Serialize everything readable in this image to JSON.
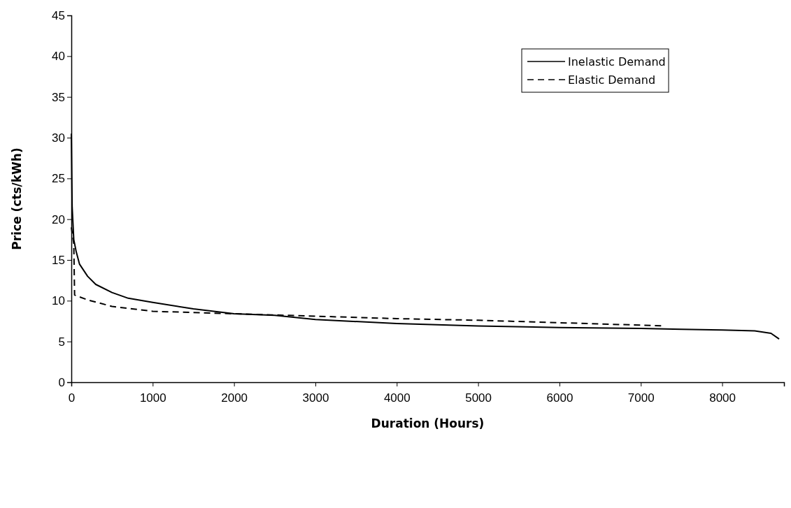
{
  "chart_data": {
    "type": "line",
    "xlabel": "Duration (Hours)",
    "ylabel": "Price (cts/kWh)",
    "xlim": [
      0,
      8760
    ],
    "xticks": [
      0,
      1000,
      2000,
      3000,
      4000,
      5000,
      6000,
      7000,
      8000
    ],
    "ylim": [
      0,
      45
    ],
    "yticks": [
      0,
      5,
      10,
      15,
      20,
      25,
      30,
      35,
      40,
      45
    ],
    "grid": false,
    "legend": "top right",
    "marker": "none",
    "series": [
      {
        "name": "Inelastic Demand",
        "color": "#000000",
        "line_style": "solid",
        "x": [
          0,
          10,
          30,
          60,
          100,
          200,
          300,
          500,
          700,
          1000,
          1500,
          2000,
          2500,
          3000,
          4000,
          5000,
          6000,
          7000,
          7500,
          8000,
          8400,
          8600,
          8700
        ],
        "values": [
          30.5,
          21.5,
          17.5,
          16,
          14.5,
          13,
          12,
          11,
          10.3,
          9.8,
          9,
          8.4,
          8.2,
          7.7,
          7.2,
          6.9,
          6.7,
          6.6,
          6.5,
          6.4,
          6.3,
          6,
          5.3
        ]
      },
      {
        "name": "Elastic Demand",
        "color": "#000000",
        "line_style": "dashed",
        "x": [
          0,
          30,
          40,
          200,
          500,
          1000,
          2000,
          3000,
          4000,
          5000,
          6000,
          7000,
          7300
        ],
        "values": [
          19,
          17,
          10.7,
          10.1,
          9.3,
          8.7,
          8.4,
          8.1,
          7.8,
          7.6,
          7.3,
          7,
          6.9
        ]
      }
    ]
  }
}
